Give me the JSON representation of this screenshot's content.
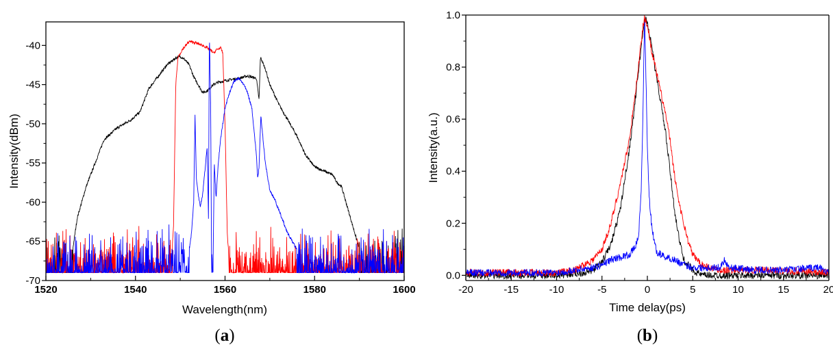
{
  "chart_data": [
    {
      "type": "line",
      "panel_label": "(a)",
      "panel_letter": "a",
      "xlabel": "Wavelength(nm)",
      "ylabel": "Intensity(dBm)",
      "xlim": [
        1520,
        1600
      ],
      "ylim": [
        -70,
        -37
      ],
      "xticks": [
        1520,
        1540,
        1560,
        1580,
        1600
      ],
      "yticks": [
        -70,
        -65,
        -60,
        -55,
        -50,
        -45,
        -40
      ],
      "grid": false,
      "legend": "none",
      "noise_floor_dBm": -70,
      "series": [
        {
          "color": "#000000",
          "points": [
            [
              1520,
              -69
            ],
            [
              1524,
              -68
            ],
            [
              1526,
              -66
            ],
            [
              1527,
              -62
            ],
            [
              1529,
              -58
            ],
            [
              1531,
              -55
            ],
            [
              1533,
              -52
            ],
            [
              1536,
              -50.5
            ],
            [
              1539,
              -49.5
            ],
            [
              1541,
              -48.5
            ],
            [
              1542,
              -47
            ],
            [
              1543,
              -45.5
            ],
            [
              1545,
              -44
            ],
            [
              1547,
              -42.5
            ],
            [
              1549,
              -41.6
            ],
            [
              1550,
              -41.4
            ],
            [
              1551,
              -41.8
            ],
            [
              1552,
              -42.5
            ],
            [
              1553,
              -44
            ],
            [
              1554,
              -45
            ],
            [
              1555,
              -46
            ],
            [
              1556,
              -45.8
            ],
            [
              1557,
              -45.2
            ],
            [
              1558,
              -44.8
            ],
            [
              1560,
              -44.5
            ],
            [
              1562,
              -44.3
            ],
            [
              1563,
              -44.2
            ],
            [
              1565,
              -43.9
            ],
            [
              1567,
              -44.2
            ],
            [
              1567.6,
              -47
            ],
            [
              1567.9,
              -41.5
            ],
            [
              1569,
              -43
            ],
            [
              1570,
              -45
            ],
            [
              1572,
              -47.5
            ],
            [
              1574,
              -49.5
            ],
            [
              1576,
              -51.5
            ],
            [
              1578,
              -54
            ],
            [
              1580,
              -55.5
            ],
            [
              1582,
              -56
            ],
            [
              1584,
              -56.5
            ],
            [
              1585,
              -57.5
            ],
            [
              1586,
              -58
            ],
            [
              1587,
              -60
            ],
            [
              1588,
              -62
            ],
            [
              1589,
              -64
            ],
            [
              1590,
              -66
            ],
            [
              1591,
              -68
            ],
            [
              1593,
              -69
            ],
            [
              1600,
              -69
            ]
          ]
        },
        {
          "color": "#ff0000",
          "points": [
            [
              1520,
              -69
            ],
            [
              1548,
              -68
            ],
            [
              1548.5,
              -63
            ],
            [
              1549,
              -45
            ],
            [
              1549.5,
              -41.5
            ],
            [
              1550.5,
              -40.5
            ],
            [
              1552,
              -39.5
            ],
            [
              1553,
              -39.6
            ],
            [
              1554,
              -39.8
            ],
            [
              1555,
              -40
            ],
            [
              1556,
              -40.3
            ],
            [
              1557,
              -40.7
            ],
            [
              1557.5,
              -41
            ],
            [
              1558,
              -40.6
            ],
            [
              1559,
              -40.3
            ],
            [
              1559.5,
              -41
            ],
            [
              1560,
              -50
            ],
            [
              1560.5,
              -64
            ],
            [
              1561,
              -68
            ],
            [
              1590,
              -68
            ],
            [
              1591,
              -70
            ]
          ]
        },
        {
          "color": "#0000ff",
          "points": [
            [
              1520,
              -69
            ],
            [
              1550,
              -68
            ],
            [
              1552,
              -66
            ],
            [
              1552.5,
              -64
            ],
            [
              1553,
              -60
            ],
            [
              1553.3,
              -49
            ],
            [
              1553.6,
              -57
            ],
            [
              1554,
              -59
            ],
            [
              1554.5,
              -60.5
            ],
            [
              1555,
              -59
            ],
            [
              1555.5,
              -56
            ],
            [
              1556,
              -53
            ],
            [
              1556.3,
              -62
            ],
            [
              1556.5,
              -38.2
            ],
            [
              1556.8,
              -48
            ],
            [
              1557,
              -69
            ],
            [
              1557.3,
              -69
            ],
            [
              1557.6,
              -55
            ],
            [
              1558,
              -59.5
            ],
            [
              1558.5,
              -55
            ],
            [
              1559,
              -52
            ],
            [
              1560,
              -48
            ],
            [
              1561,
              -46
            ],
            [
              1562,
              -44.6
            ],
            [
              1563,
              -44.2
            ],
            [
              1564,
              -44.8
            ],
            [
              1565,
              -46
            ],
            [
              1566,
              -48
            ],
            [
              1567,
              -54
            ],
            [
              1567.3,
              -57
            ],
            [
              1567.6,
              -55.5
            ],
            [
              1568,
              -49
            ],
            [
              1568.5,
              -52
            ],
            [
              1569,
              -55
            ],
            [
              1570,
              -58.5
            ],
            [
              1571,
              -59.5
            ],
            [
              1572,
              -61
            ],
            [
              1573,
              -62.5
            ],
            [
              1574,
              -64
            ],
            [
              1576,
              -66
            ],
            [
              1580,
              -68
            ],
            [
              1590,
              -69
            ]
          ]
        }
      ]
    },
    {
      "type": "line",
      "panel_label": "(b)",
      "panel_letter": "b",
      "xlabel": "Time delay(ps)",
      "ylabel": "Intensity(a.u.)",
      "xlim": [
        -20,
        20
      ],
      "ylim": [
        -0.02,
        1.0
      ],
      "xticks": [
        -20,
        -15,
        -10,
        -5,
        0,
        5,
        10,
        15,
        20
      ],
      "xtick_labels": [
        "-20",
        "-15",
        "-10",
        "-5",
        "0",
        "5",
        "10",
        "15",
        "20"
      ],
      "yticks": [
        0.0,
        0.2,
        0.4,
        0.6,
        0.8,
        1.0
      ],
      "ytick_labels": [
        "0.0",
        "0.2",
        "0.4",
        "0.6",
        "0.8",
        "1.0"
      ],
      "grid": false,
      "legend": "none",
      "series": [
        {
          "color": "#000000",
          "points": [
            [
              -20,
              0.0
            ],
            [
              -10,
              0.0
            ],
            [
              -7,
              0.01
            ],
            [
              -6,
              0.02
            ],
            [
              -5,
              0.05
            ],
            [
              -4,
              0.12
            ],
            [
              -3,
              0.25
            ],
            [
              -2,
              0.48
            ],
            [
              -1.5,
              0.62
            ],
            [
              -1,
              0.78
            ],
            [
              -0.5,
              0.93
            ],
            [
              -0.3,
              0.99
            ],
            [
              0,
              0.97
            ],
            [
              0.5,
              0.88
            ],
            [
              1,
              0.76
            ],
            [
              1.5,
              0.66
            ],
            [
              2,
              0.55
            ],
            [
              2.5,
              0.4
            ],
            [
              3,
              0.25
            ],
            [
              3.5,
              0.14
            ],
            [
              4,
              0.06
            ],
            [
              5,
              0.02
            ],
            [
              6,
              0.0
            ],
            [
              20,
              0.0
            ]
          ]
        },
        {
          "color": "#ff0000",
          "points": [
            [
              -20,
              0.01
            ],
            [
              -12,
              0.01
            ],
            [
              -10,
              0.01
            ],
            [
              -8,
              0.02
            ],
            [
              -7,
              0.04
            ],
            [
              -6,
              0.06
            ],
            [
              -5,
              0.1
            ],
            [
              -4,
              0.2
            ],
            [
              -3,
              0.35
            ],
            [
              -2,
              0.52
            ],
            [
              -1.5,
              0.65
            ],
            [
              -1,
              0.8
            ],
            [
              -0.5,
              0.95
            ],
            [
              -0.3,
              0.99
            ],
            [
              0,
              0.96
            ],
            [
              0.5,
              0.86
            ],
            [
              1,
              0.78
            ],
            [
              1.5,
              0.7
            ],
            [
              2,
              0.62
            ],
            [
              2.5,
              0.52
            ],
            [
              3,
              0.38
            ],
            [
              3.5,
              0.28
            ],
            [
              4,
              0.2
            ],
            [
              4.5,
              0.13
            ],
            [
              5,
              0.08
            ],
            [
              6,
              0.04
            ],
            [
              8,
              0.02
            ],
            [
              10,
              0.02
            ],
            [
              14,
              0.02
            ],
            [
              20,
              0.01
            ]
          ]
        },
        {
          "color": "#0000ff",
          "points": [
            [
              -20,
              0.01
            ],
            [
              -10,
              0.01
            ],
            [
              -8,
              0.02
            ],
            [
              -6,
              0.03
            ],
            [
              -5,
              0.04
            ],
            [
              -4,
              0.06
            ],
            [
              -3,
              0.07
            ],
            [
              -2,
              0.08
            ],
            [
              -1.5,
              0.1
            ],
            [
              -1,
              0.14
            ],
            [
              -0.7,
              0.3
            ],
            [
              -0.5,
              0.6
            ],
            [
              -0.3,
              1.0
            ],
            [
              0,
              0.5
            ],
            [
              0.2,
              0.3
            ],
            [
              0.5,
              0.18
            ],
            [
              1,
              0.09
            ],
            [
              1.5,
              0.08
            ],
            [
              2,
              0.07
            ],
            [
              3,
              0.06
            ],
            [
              4,
              0.04
            ],
            [
              5,
              0.03
            ],
            [
              6,
              0.03
            ],
            [
              8,
              0.03
            ],
            [
              8.5,
              0.06
            ],
            [
              9,
              0.03
            ],
            [
              12,
              0.02
            ],
            [
              15,
              0.02
            ],
            [
              19,
              0.03
            ],
            [
              20,
              0.01
            ]
          ]
        }
      ]
    }
  ]
}
